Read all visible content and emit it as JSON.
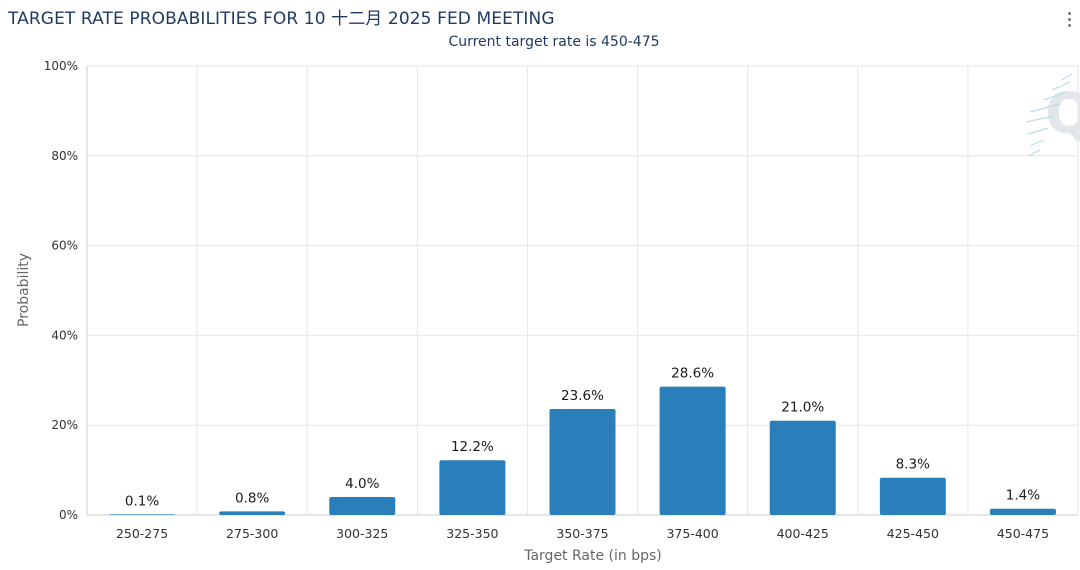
{
  "header": {
    "title": "TARGET RATE PROBABILITIES FOR 10 十二月 2025 FED MEETING",
    "subtitle": "Current target rate is 450-475"
  },
  "chart_data": {
    "type": "bar",
    "title": "TARGET RATE PROBABILITIES FOR 10 十二月 2025 FED MEETING",
    "subtitle": "Current target rate is 450-475",
    "xlabel": "Target Rate (in bps)",
    "ylabel": "Probability",
    "categories": [
      "250-275",
      "275-300",
      "300-325",
      "325-350",
      "350-375",
      "375-400",
      "400-425",
      "425-450",
      "450-475"
    ],
    "values": [
      0.1,
      0.8,
      4.0,
      12.2,
      23.6,
      28.6,
      21.0,
      8.3,
      1.4
    ],
    "value_labels": [
      "0.1%",
      "0.8%",
      "4.0%",
      "12.2%",
      "23.6%",
      "28.6%",
      "21.0%",
      "8.3%",
      "1.4%"
    ],
    "ylim": [
      0,
      100
    ],
    "yticks": [
      0,
      20,
      40,
      60,
      80,
      100
    ],
    "ytick_labels": [
      "0%",
      "20%",
      "40%",
      "60%",
      "80%",
      "100%"
    ],
    "grid": true,
    "legend": "none",
    "bar_color": "#2a7fba"
  },
  "icons": {
    "menu": "more-vertical-icon",
    "watermark": "quikstrike-watermark-icon"
  }
}
